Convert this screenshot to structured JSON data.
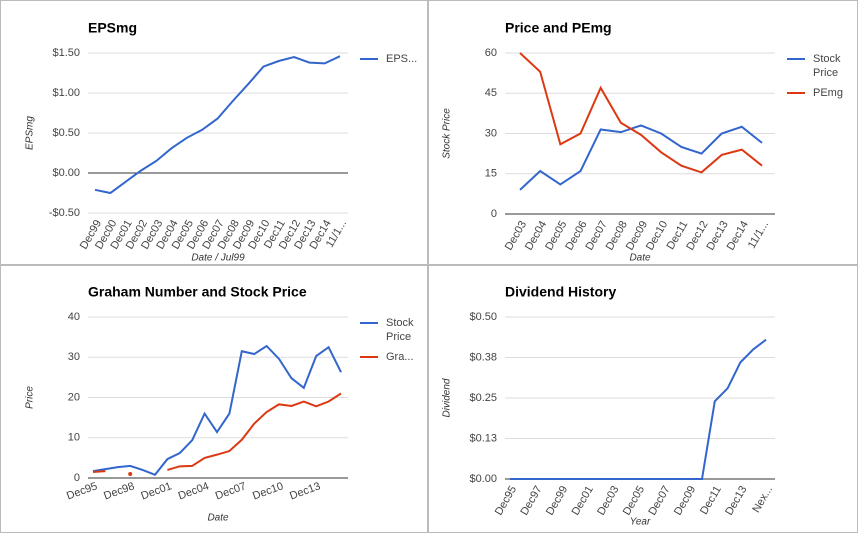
{
  "chart_data": [
    {
      "type": "line",
      "title": "EPSmg",
      "xlabel": "Date / Jul99",
      "ylabel": "EPSmg",
      "categories": [
        "Dec99",
        "Dec00",
        "Dec01",
        "Dec02",
        "Dec03",
        "Dec04",
        "Dec05",
        "Dec06",
        "Dec07",
        "Dec08",
        "Dec09",
        "Dec10",
        "Dec11",
        "Dec12",
        "Dec13",
        "Dec14",
        "11/1..."
      ],
      "series": [
        {
          "name": "EPS...",
          "color": "#3366cc",
          "values": [
            -0.21,
            -0.25,
            -0.11,
            0.03,
            0.15,
            0.31,
            0.44,
            0.54,
            0.68,
            0.9,
            1.11,
            1.33,
            1.4,
            1.45,
            1.38,
            1.37,
            1.46
          ]
        }
      ],
      "ylim": [
        -0.5,
        1.5
      ],
      "yticks": [
        {
          "value": -0.5,
          "label": "-$0.50"
        },
        {
          "value": 0,
          "label": "$0.00"
        },
        {
          "value": 0.5,
          "label": "$0.50"
        },
        {
          "value": 1,
          "label": "$1.00"
        },
        {
          "value": 1.5,
          "label": "$1.50"
        }
      ],
      "grid": true,
      "legend": "right"
    },
    {
      "type": "line",
      "title": "Price and PEmg",
      "xlabel": "Date",
      "ylabel": "Stock Price",
      "categories": [
        "Dec03",
        "Dec04",
        "Dec05",
        "Dec06",
        "Dec07",
        "Dec08",
        "Dec09",
        "Dec10",
        "Dec11",
        "Dec12",
        "Dec13",
        "Dec14",
        "11/1..."
      ],
      "series": [
        {
          "name": "Stock Price",
          "color": "#3366cc",
          "values": [
            9,
            16,
            11,
            16,
            31.5,
            30.5,
            33,
            30,
            25,
            22.5,
            30,
            32.5,
            26.5
          ]
        },
        {
          "name": "PEmg",
          "color": "#dc3912",
          "values": [
            60,
            53,
            26,
            30,
            47,
            34,
            29.5,
            23,
            18,
            15.5,
            22,
            24,
            18
          ]
        }
      ],
      "ylim": [
        0,
        60
      ],
      "yticks": [
        0,
        15,
        30,
        45,
        60
      ],
      "grid": true,
      "legend": "right"
    },
    {
      "type": "line",
      "title": "Graham Number and Stock Price",
      "xlabel": "Date",
      "ylabel": "Price",
      "categories": [
        "Dec95",
        null,
        null,
        "Dec98",
        null,
        null,
        "Dec01",
        null,
        null,
        "Dec04",
        null,
        null,
        "Dec07",
        null,
        null,
        "Dec10",
        null,
        null,
        "Dec13",
        null,
        null
      ],
      "series": [
        {
          "name": "Stock Price",
          "color": "#3366cc",
          "values": [
            1.7,
            2.2,
            2.7,
            3,
            2,
            0.8,
            4.7,
            6.2,
            9.4,
            16,
            11.4,
            16,
            31.5,
            30.8,
            32.8,
            29.6,
            24.8,
            22.4,
            30.3,
            32.5,
            26.3
          ]
        },
        {
          "name": "Gra...",
          "color": "#dc3912",
          "values": [
            1.5,
            1.7,
            null,
            1,
            null,
            null,
            2,
            2.9,
            3,
            5,
            5.8,
            6.7,
            9.5,
            13.5,
            16.4,
            18.3,
            17.9,
            19,
            17.8,
            19,
            21
          ]
        }
      ],
      "ylim": [
        0,
        40
      ],
      "yticks": [
        0,
        10,
        20,
        30,
        40
      ],
      "grid": true,
      "legend": "right"
    },
    {
      "type": "line",
      "title": "Dividend History",
      "xlabel": "Year",
      "ylabel": "Dividend",
      "categories": [
        "Dec95",
        null,
        "Dec97",
        null,
        "Dec99",
        null,
        "Dec01",
        null,
        "Dec03",
        null,
        "Dec05",
        null,
        "Dec07",
        null,
        "Dec09",
        null,
        "Dec11",
        null,
        "Dec13",
        null,
        "Nex..."
      ],
      "series": [
        {
          "name": "Dividend",
          "color": "#3366cc",
          "values": [
            0,
            0,
            0,
            0,
            0,
            0,
            0,
            0,
            0,
            0,
            0,
            0,
            0,
            0,
            0,
            0,
            0.24,
            0.28,
            0.36,
            0.4,
            0.43
          ]
        }
      ],
      "ylim": [
        0,
        0.5
      ],
      "yticks": [
        {
          "value": 0,
          "label": "$0.00"
        },
        {
          "value": 0.125,
          "label": "$0.13"
        },
        {
          "value": 0.25,
          "label": "$0.25"
        },
        {
          "value": 0.375,
          "label": "$0.38"
        },
        {
          "value": 0.5,
          "label": "$0.50"
        }
      ],
      "grid": true,
      "legend": "none"
    }
  ]
}
